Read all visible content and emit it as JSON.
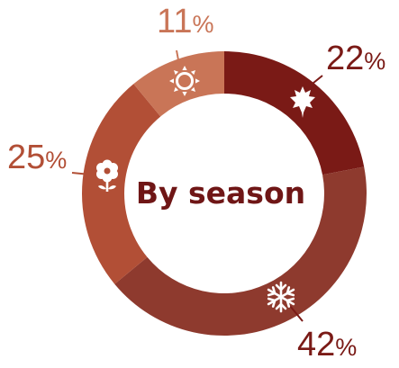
{
  "chart_data": {
    "type": "pie",
    "title": "By season",
    "categories": [
      "autumn",
      "winter",
      "spring",
      "summer"
    ],
    "values": [
      22,
      42,
      25,
      11
    ],
    "labels": [
      "22%",
      "42%",
      "25%",
      "11%"
    ],
    "icons": [
      "maple-leaf-icon",
      "snowflake-icon",
      "flower-icon",
      "sun-icon"
    ],
    "colors": [
      "#7a1a16",
      "#8e3a2e",
      "#b24f36",
      "#c97557"
    ],
    "label_colors": [
      "#7a1a16",
      "#7a1a16",
      "#b24f36",
      "#c97557"
    ]
  }
}
